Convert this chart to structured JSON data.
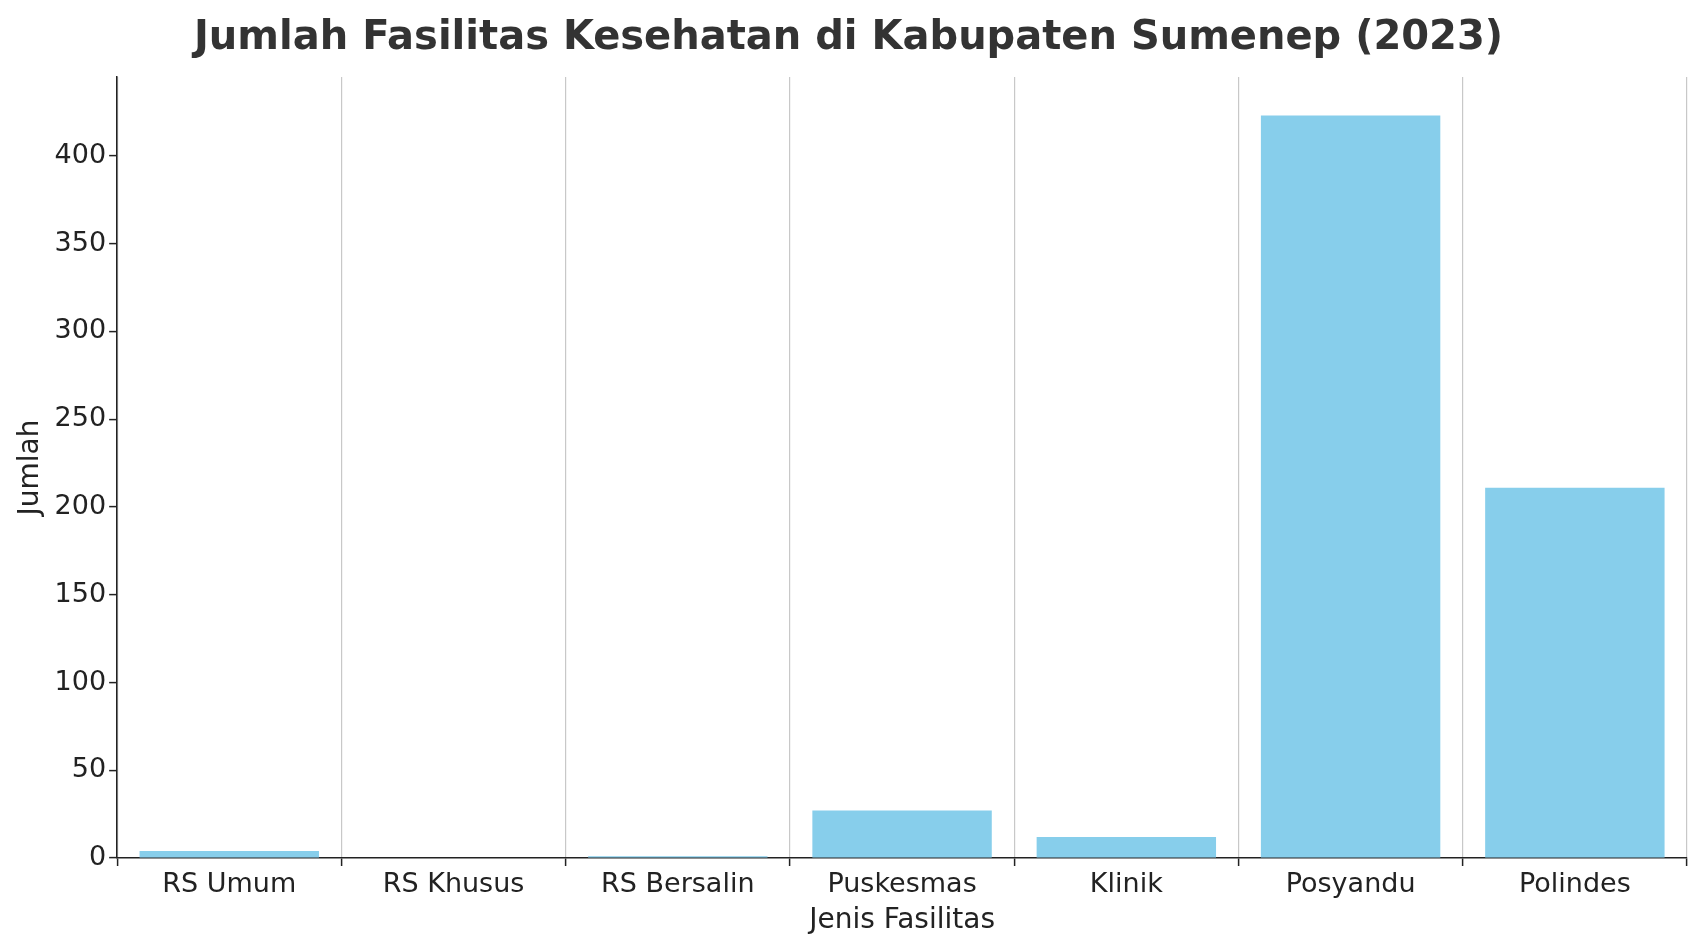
{
  "chart_data": {
    "type": "bar",
    "title": "Jumlah Fasilitas Kesehatan di Kabupaten Sumenep (2023)",
    "xlabel": "Jenis Fasilitas",
    "ylabel": "Jumlah",
    "categories": [
      "RS Umum",
      "RS Khusus",
      "RS Bersalin",
      "Puskesmas",
      "Klinik",
      "Posyandu",
      "Polindes"
    ],
    "values": [
      4,
      0,
      1,
      27,
      12,
      423,
      211
    ],
    "color": "#87ceeb",
    "ylim": [
      0,
      445
    ],
    "yticks": [
      0,
      50,
      100,
      150,
      200,
      250,
      300,
      350,
      400
    ],
    "grid": "x",
    "legend": false
  }
}
